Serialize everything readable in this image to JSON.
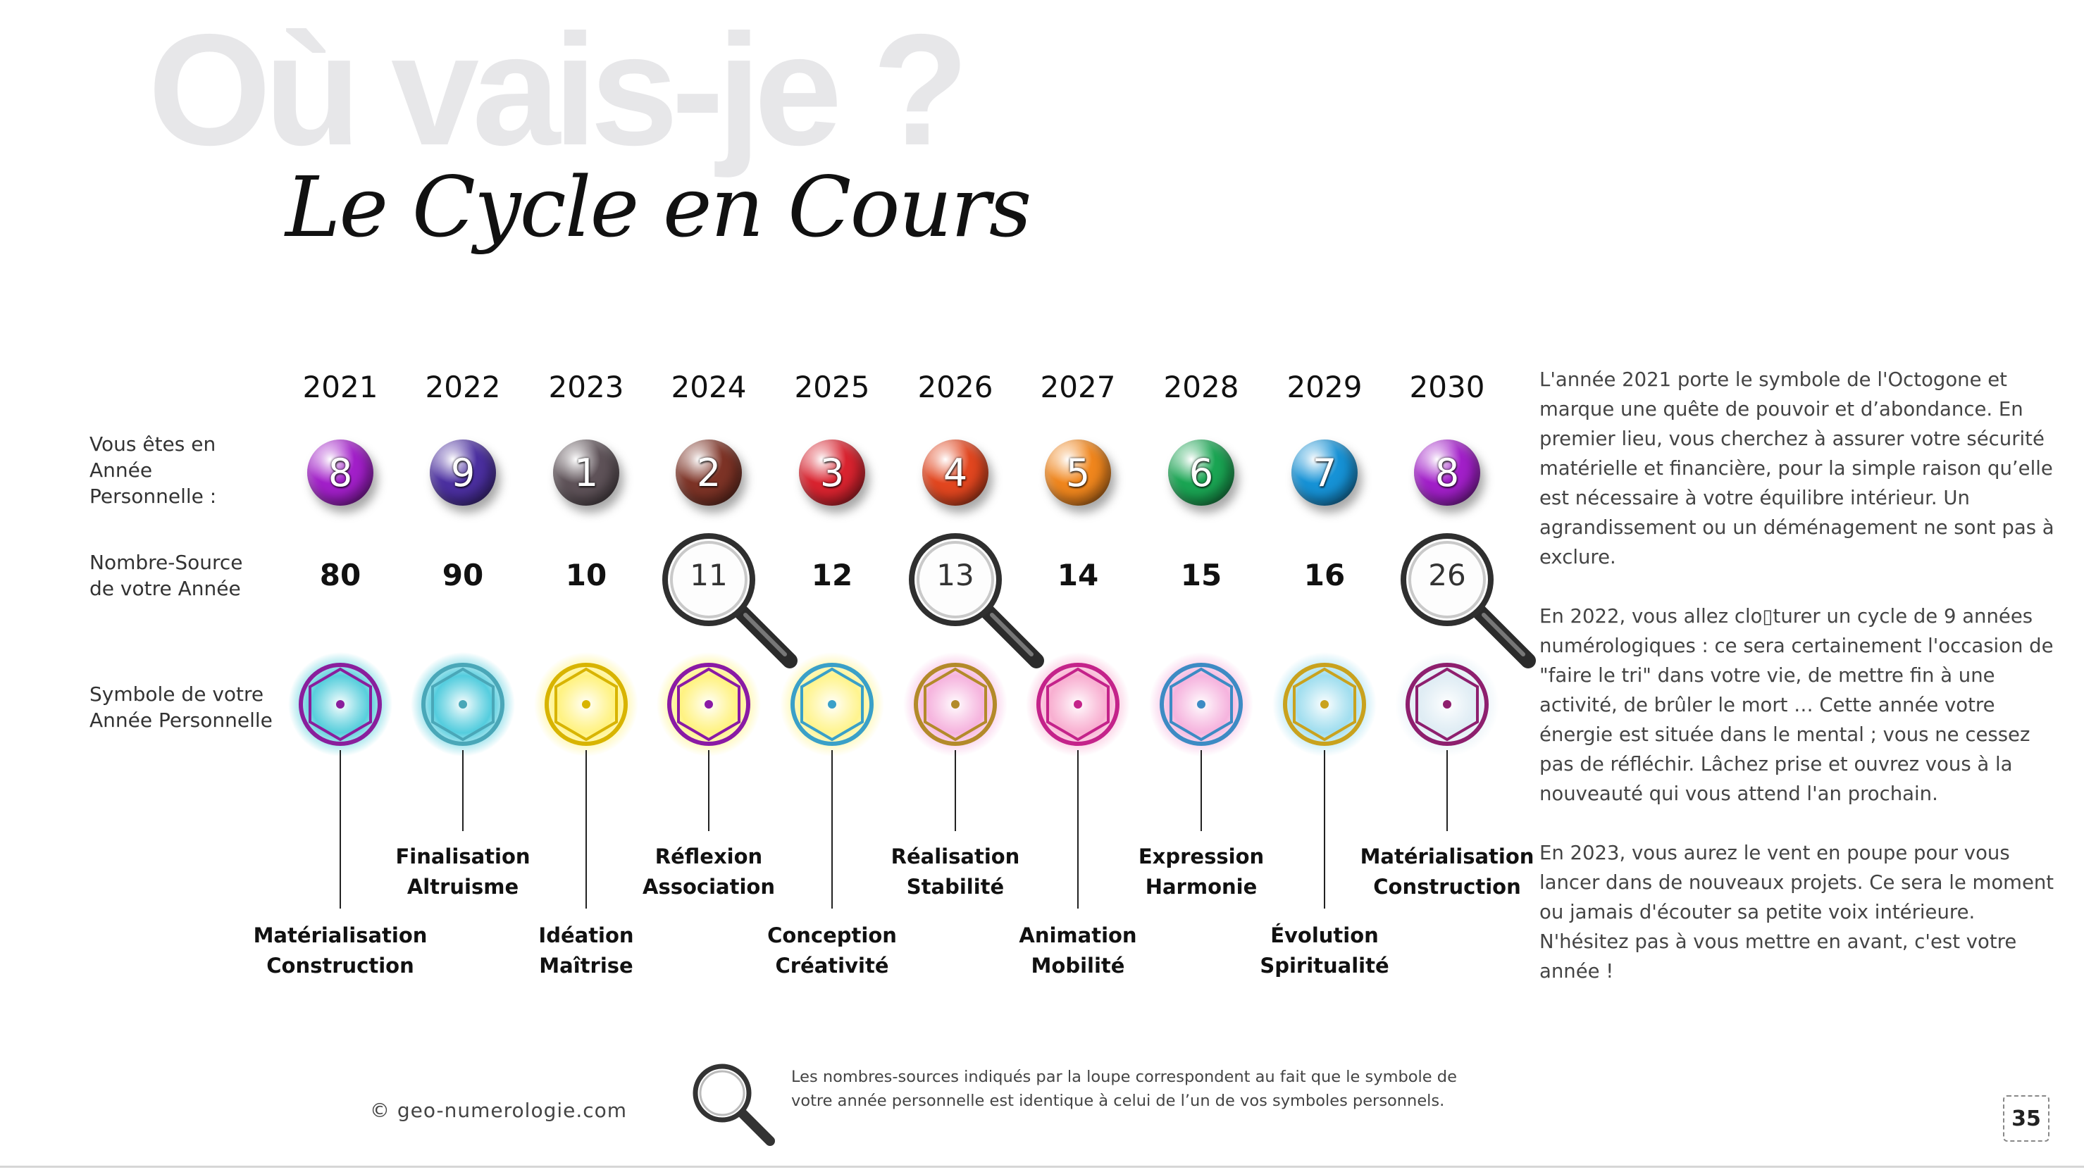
{
  "background_title": "Où vais-je ?",
  "title": "Le Cycle en Cours",
  "row_labels": {
    "personal_year": "Vous êtes en Année Personnelle :",
    "source_number": "Nombre-Source de votre Année",
    "symbol": "Symbole de votre Année Personnelle"
  },
  "years": [
    {
      "year": "2021",
      "personal": "8",
      "source": "80",
      "lens": false,
      "meaning1": "Matérialisation",
      "meaning2": "Construction",
      "ball_color": "#a21fc9",
      "symbol_color": "#8a1e9c",
      "glow": "#3bc6d6"
    },
    {
      "year": "2022",
      "personal": "9",
      "source": "90",
      "lens": false,
      "meaning1": "Finalisation",
      "meaning2": "Altruisme",
      "ball_color": "#4b2fa0",
      "symbol_color": "#4aa7b8",
      "glow": "#36c4d8"
    },
    {
      "year": "2023",
      "personal": "1",
      "source": "10",
      "lens": false,
      "meaning1": "Idéation",
      "meaning2": "Maîtrise",
      "ball_color": "#5e5258",
      "symbol_color": "#d8b400",
      "glow": "#fff06a"
    },
    {
      "year": "2024",
      "personal": "2",
      "source": "11",
      "lens": true,
      "meaning1": "Réflexion",
      "meaning2": "Association",
      "ball_color": "#7d3326",
      "symbol_color": "#8a1aa5",
      "glow": "#fff06a"
    },
    {
      "year": "2025",
      "personal": "3",
      "source": "12",
      "lens": false,
      "meaning1": "Conception",
      "meaning2": "Créativité",
      "ball_color": "#d9232f",
      "symbol_color": "#3aa0c8",
      "glow": "#fff27a"
    },
    {
      "year": "2026",
      "personal": "4",
      "source": "13",
      "lens": true,
      "meaning1": "Réalisation",
      "meaning2": "Stabilité",
      "ball_color": "#e2461f",
      "symbol_color": "#b38a2a",
      "glow": "#f4a6d8"
    },
    {
      "year": "2027",
      "personal": "5",
      "source": "14",
      "lens": false,
      "meaning1": "Animation",
      "meaning2": "Mobilité",
      "ball_color": "#f0861d",
      "symbol_color": "#c4238a",
      "glow": "#f7a0c8"
    },
    {
      "year": "2028",
      "personal": "6",
      "source": "15",
      "lens": false,
      "meaning1": "Expression",
      "meaning2": "Harmonie",
      "ball_color": "#1aa553",
      "symbol_color": "#3d8bc4",
      "glow": "#f4a6d8"
    },
    {
      "year": "2029",
      "personal": "7",
      "source": "16",
      "lens": false,
      "meaning1": "Évolution",
      "meaning2": "Spiritualité",
      "ball_color": "#1692d6",
      "symbol_color": "#c9a21e",
      "glow": "#8fd8ec"
    },
    {
      "year": "2030",
      "personal": "8",
      "source": "26",
      "lens": true,
      "meaning1": "Matérialisation",
      "meaning2": "Construction",
      "ball_color": "#a21fc9",
      "symbol_color": "#8e1f6e",
      "glow": "#d9e9f2"
    }
  ],
  "side_text": [
    "L'année 2021 porte le symbole de l'Octogone et marque une quête de pouvoir et d’abondance. En premier lieu, vous cherchez à assurer votre sécurité matérielle et financière, pour la simple raison qu’elle est nécessaire à votre équilibre intérieur. Un agrandissement ou un déménagement ne sont pas à exclure.",
    "En 2022, vous allez clo▯turer un cycle de 9 années numérologiques : ce sera certainement l'occasion de \"faire le tri\" dans votre vie, de mettre fin à une activité, de brûler le mort … Cette année votre énergie est située dans le mental ; vous ne cessez pas de réfléchir. Lâchez prise et ouvrez vous à la nouveauté qui vous attend l'an prochain.",
    "En 2023, vous aurez le vent en poupe pour vous lancer dans de nouveaux projets. Ce sera le moment ou jamais d'écouter sa petite voix intérieure. N'hésitez pas à vous mettre en avant, c'est votre année !"
  ],
  "footer": {
    "copyright": "© geo-numerologie.com",
    "note": "Les nombres-sources indiqués par la loupe correspondent au fait que le symbole de votre année personnelle est identique à celui de l’un de vos symboles personnels.",
    "page_number": "35"
  }
}
